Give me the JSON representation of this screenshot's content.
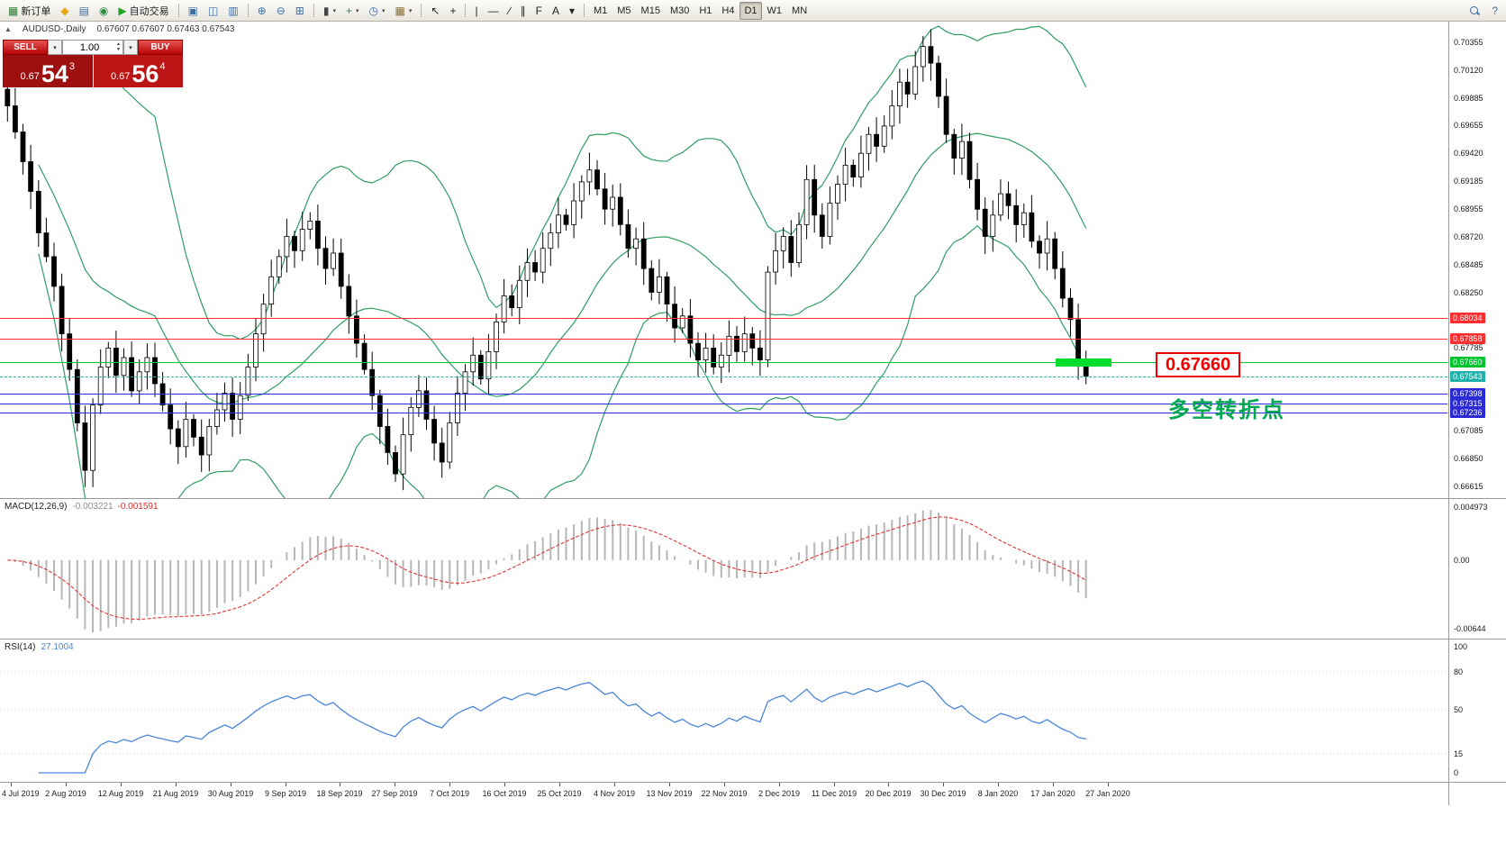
{
  "icons": {
    "dropdown": "▾",
    "expander": "▲",
    "spinner_up": "▲",
    "spinner_down": "▼"
  },
  "toolbar": {
    "groups": [
      {
        "items": [
          {
            "name": "new-order-button",
            "icon": "new-order-icon",
            "glyph": "▦",
            "color": "#2f7d32",
            "label": "新订单"
          },
          {
            "name": "mql5-community-button",
            "icon": "mql5-icon",
            "glyph": "◆",
            "color": "#e6a817"
          },
          {
            "name": "charts-button",
            "icon": "charts-icon",
            "glyph": "▤",
            "color": "#3a6ea5"
          },
          {
            "name": "market-button",
            "icon": "globe-icon",
            "glyph": "◉",
            "color": "#2f8f46"
          },
          {
            "name": "autotrading-button",
            "icon": "play-icon",
            "glyph": "▶",
            "color": "#27a327",
            "label": "自动交易"
          }
        ]
      },
      {
        "items": [
          {
            "name": "tile-windows-button",
            "icon": "tile-windows-icon",
            "glyph": "▣",
            "color": "#3a6ea5"
          },
          {
            "name": "cascade-windows-button",
            "icon": "cascade-windows-icon",
            "glyph": "◫",
            "color": "#3a6ea5"
          },
          {
            "name": "arrange-windows-button",
            "icon": "arrange-windows-icon",
            "glyph": "▥",
            "color": "#3a6ea5"
          }
        ]
      },
      {
        "items": [
          {
            "name": "zoom-in-button",
            "icon": "zoom-in-icon",
            "glyph": "⊕",
            "color": "#3a6ea5"
          },
          {
            "name": "zoom-out-button",
            "icon": "zoom-out-icon",
            "glyph": "⊖",
            "color": "#3a6ea5"
          },
          {
            "name": "tile-grid-button",
            "icon": "grid-icon",
            "glyph": "⊞",
            "color": "#3a6ea5"
          }
        ]
      },
      {
        "items": [
          {
            "name": "chart-type-button",
            "icon": "candlestick-icon",
            "glyph": "▮",
            "color": "#444",
            "dropdown": true
          },
          {
            "name": "indicators-button",
            "icon": "plus-icon",
            "glyph": "+",
            "color": "#2f8f46",
            "dropdown": true
          },
          {
            "name": "periods-button",
            "icon": "clock-icon",
            "glyph": "◷",
            "color": "#3a6ea5",
            "dropdown": true
          },
          {
            "name": "templates-button",
            "icon": "template-icon",
            "glyph": "▦",
            "color": "#8a6d3b",
            "dropdown": true
          }
        ]
      },
      {
        "items": [
          {
            "name": "cursor-button",
            "icon": "cursor-icon",
            "glyph": "↖",
            "color": "#222"
          },
          {
            "name": "crosshair-button",
            "icon": "crosshair-icon",
            "glyph": "+",
            "color": "#222"
          }
        ]
      },
      {
        "items": [
          {
            "name": "vertical-line-button",
            "icon": "vertical-line-icon",
            "glyph": "|",
            "color": "#222"
          },
          {
            "name": "horizontal-line-button",
            "icon": "horizontal-line-icon",
            "glyph": "—",
            "color": "#222"
          },
          {
            "name": "trendline-button",
            "icon": "trendline-icon",
            "glyph": "∕",
            "color": "#222"
          },
          {
            "name": "channel-button",
            "icon": "channel-icon",
            "glyph": "∥",
            "color": "#222"
          },
          {
            "name": "fibonacci-button",
            "icon": "fibonacci-icon",
            "glyph": "F",
            "color": "#222"
          },
          {
            "name": "text-button",
            "icon": "text-icon",
            "glyph": "A",
            "color": "#222"
          },
          {
            "name": "arrows-button",
            "icon": "arrows-icon",
            "glyph": "▾",
            "color": "#222"
          }
        ]
      },
      {
        "items": [
          {
            "name": "timeframe-m1-button",
            "label": "M1"
          },
          {
            "name": "timeframe-m5-button",
            "label": "M5"
          },
          {
            "name": "timeframe-m15-button",
            "label": "M15"
          },
          {
            "name": "timeframe-m30-button",
            "label": "M30"
          },
          {
            "name": "timeframe-h1-button",
            "label": "H1"
          },
          {
            "name": "timeframe-h4-button",
            "label": "H4"
          },
          {
            "name": "timeframe-d1-button",
            "label": "D1",
            "active": true
          },
          {
            "name": "timeframe-w1-button",
            "label": "W1"
          },
          {
            "name": "timeframe-mn-button",
            "label": "MN"
          }
        ]
      }
    ],
    "right_items": [
      {
        "name": "symbol-search-button",
        "icon": "search-icon",
        "shape": "magnifier"
      },
      {
        "name": "help-button",
        "icon": "help-icon",
        "glyph": "?",
        "color": "#3a6ea5"
      }
    ]
  },
  "chart": {
    "title": "AUDUSD-,Daily",
    "ohlc": "0.67607 0.67607 0.67463 0.67543",
    "one_click": {
      "sell_label": "SELL",
      "buy_label": "BUY",
      "volume": "1.00",
      "sell_price": {
        "prefix": "0.67",
        "big": "54",
        "sup": "3"
      },
      "buy_price": {
        "prefix": "0.67",
        "big": "56",
        "sup": "4"
      }
    },
    "price_scale": [
      "0.70355",
      "0.70120",
      "0.69885",
      "0.69655",
      "0.69420",
      "0.69185",
      "0.68955",
      "0.68720",
      "0.68485",
      "0.68250",
      "0.67785",
      "0.67315",
      "0.67085",
      "0.66850",
      "0.66615"
    ],
    "annotations": {
      "price_label": "0.67660",
      "note": "多空转折点",
      "bar_price": 0.6766
    },
    "dates": [
      "4 Jul 2019",
      "2 Aug 2019",
      "12 Aug 2019",
      "21 Aug 2019",
      "30 Aug 2019",
      "9 Sep 2019",
      "18 Sep 2019",
      "27 Sep 2019",
      "7 Oct 2019",
      "16 Oct 2019",
      "25 Oct 2019",
      "4 Nov 2019",
      "13 Nov 2019",
      "22 Nov 2019",
      "2 Dec 2019",
      "11 Dec 2019",
      "20 Dec 2019",
      "30 Dec 2019",
      "8 Jan 2020",
      "17 Jan 2020",
      "27 Jan 2020"
    ]
  },
  "macd": {
    "name": "MACD(12,26,9)",
    "main_value": "-0.003221",
    "signal_value": "-0.001591",
    "scale": [
      "0.004973",
      "0.00",
      "-0.00644"
    ]
  },
  "rsi": {
    "name": "RSI(14)",
    "value": "27.1004",
    "scale": [
      "100",
      "80",
      "50",
      "15",
      "0"
    ]
  },
  "colors": {
    "up_candle": "#ffffff",
    "down_candle": "#000000",
    "candle_outline": "#000000",
    "bollinger": "#2e9e62",
    "macd_histogram": "#b6b6b6",
    "macd_signal": "#e03636",
    "rsi_line": "#4a86d8",
    "bid_line": "#20b2aa",
    "resistance": "#ff2d2d",
    "support": "#2b2bd6",
    "pivot": "#00c42e"
  },
  "chart_data": {
    "type": "candlestick",
    "symbol": "AUDUSD",
    "timeframe": "Daily",
    "title": "AUDUSD-,Daily",
    "ohlc_current": {
      "open": 0.67607,
      "high": 0.67607,
      "low": 0.67463,
      "close": 0.67543
    },
    "bid": 0.67543,
    "ask": 0.67564,
    "ylim": [
      0.66615,
      0.70355
    ],
    "closes": [
      0.6982,
      0.696,
      0.6935,
      0.691,
      0.6875,
      0.6855,
      0.683,
      0.679,
      0.676,
      0.6715,
      0.6675,
      0.673,
      0.6762,
      0.6778,
      0.6755,
      0.677,
      0.6742,
      0.6758,
      0.677,
      0.6748,
      0.673,
      0.671,
      0.6695,
      0.6718,
      0.6703,
      0.6688,
      0.6712,
      0.6726,
      0.674,
      0.6718,
      0.6738,
      0.6762,
      0.679,
      0.6815,
      0.6838,
      0.6855,
      0.6872,
      0.686,
      0.6878,
      0.6885,
      0.6862,
      0.6845,
      0.6858,
      0.683,
      0.6805,
      0.6782,
      0.676,
      0.6738,
      0.6712,
      0.669,
      0.6672,
      0.6705,
      0.6728,
      0.6742,
      0.6718,
      0.6698,
      0.6682,
      0.6715,
      0.674,
      0.6758,
      0.6772,
      0.6752,
      0.6775,
      0.68,
      0.6822,
      0.6812,
      0.6835,
      0.685,
      0.6842,
      0.6862,
      0.6875,
      0.689,
      0.6882,
      0.6902,
      0.6918,
      0.6928,
      0.6912,
      0.6895,
      0.6905,
      0.6882,
      0.6862,
      0.687,
      0.6845,
      0.6825,
      0.6838,
      0.6815,
      0.6795,
      0.6805,
      0.6782,
      0.6768,
      0.6778,
      0.6762,
      0.6772,
      0.6788,
      0.6775,
      0.679,
      0.6778,
      0.6768,
      0.6842,
      0.686,
      0.6872,
      0.685,
      0.6882,
      0.692,
      0.689,
      0.6872,
      0.69,
      0.6916,
      0.6932,
      0.6922,
      0.6942,
      0.6958,
      0.6948,
      0.6965,
      0.6982,
      0.7002,
      0.6992,
      0.7015,
      0.7032,
      0.7018,
      0.699,
      0.6958,
      0.6938,
      0.6952,
      0.692,
      0.6895,
      0.6872,
      0.689,
      0.6908,
      0.6898,
      0.6882,
      0.6892,
      0.6868,
      0.6858,
      0.687,
      0.6845,
      0.682,
      0.6802,
      0.6765,
      0.67543
    ],
    "bollinger": {
      "period": 20,
      "deviation": 2
    },
    "levels": [
      {
        "name": "resistance-line-1",
        "label": "0.68034",
        "value": 0.68034,
        "color": "#ff2d2d",
        "badge_bg": "#ff2d2d",
        "badge_fg": "#ffffff"
      },
      {
        "name": "resistance-line-2",
        "label": "0.67858",
        "value": 0.67858,
        "color": "#ff2d2d",
        "badge_bg": "#ff2d2d",
        "badge_fg": "#ffffff"
      },
      {
        "name": "pivot-line",
        "label": "0.67660",
        "value": 0.6766,
        "color": "#00c42e",
        "badge_bg": "#00c42e",
        "badge_fg": "#ffffff"
      },
      {
        "name": "bid-price-line",
        "label": "0.67543",
        "value": 0.67543,
        "color": "#20b2aa",
        "badge_bg": "#20b2aa",
        "badge_fg": "#ffffff",
        "dashed": true
      },
      {
        "name": "support-line-1",
        "label": "0.67398",
        "value": 0.67398,
        "color": "#2b2bd6",
        "badge_bg": "#2b2bd6",
        "badge_fg": "#ffffff"
      },
      {
        "name": "support-line-2",
        "label": "0.67315",
        "value": 0.67315,
        "color": "#2b2bd6",
        "badge_bg": "#2b2bd6",
        "badge_fg": "#ffffff"
      },
      {
        "name": "support-line-3",
        "label": "0.67236",
        "value": 0.67236,
        "color": "#2b2bd6",
        "badge_bg": "#2b2bd6",
        "badge_fg": "#ffffff"
      }
    ],
    "macd": {
      "fast": 12,
      "slow": 26,
      "signal": 9,
      "current_macd": -0.003221,
      "current_signal": -0.001591,
      "range": [
        -0.00644,
        0.004973
      ]
    },
    "rsi": {
      "period": 14,
      "current": 27.1004,
      "levels": [
        80,
        50,
        15
      ]
    },
    "x_labels": [
      "4 Jul 2019",
      "2 Aug 2019",
      "12 Aug 2019",
      "21 Aug 2019",
      "30 Aug 2019",
      "9 Sep 2019",
      "18 Sep 2019",
      "27 Sep 2019",
      "7 Oct 2019",
      "16 Oct 2019",
      "25 Oct 2019",
      "4 Nov 2019",
      "13 Nov 2019",
      "22 Nov 2019",
      "2 Dec 2019",
      "11 Dec 2019",
      "20 Dec 2019",
      "30 Dec 2019",
      "8 Jan 2020",
      "17 Jan 2020",
      "27 Jan 2020"
    ]
  }
}
